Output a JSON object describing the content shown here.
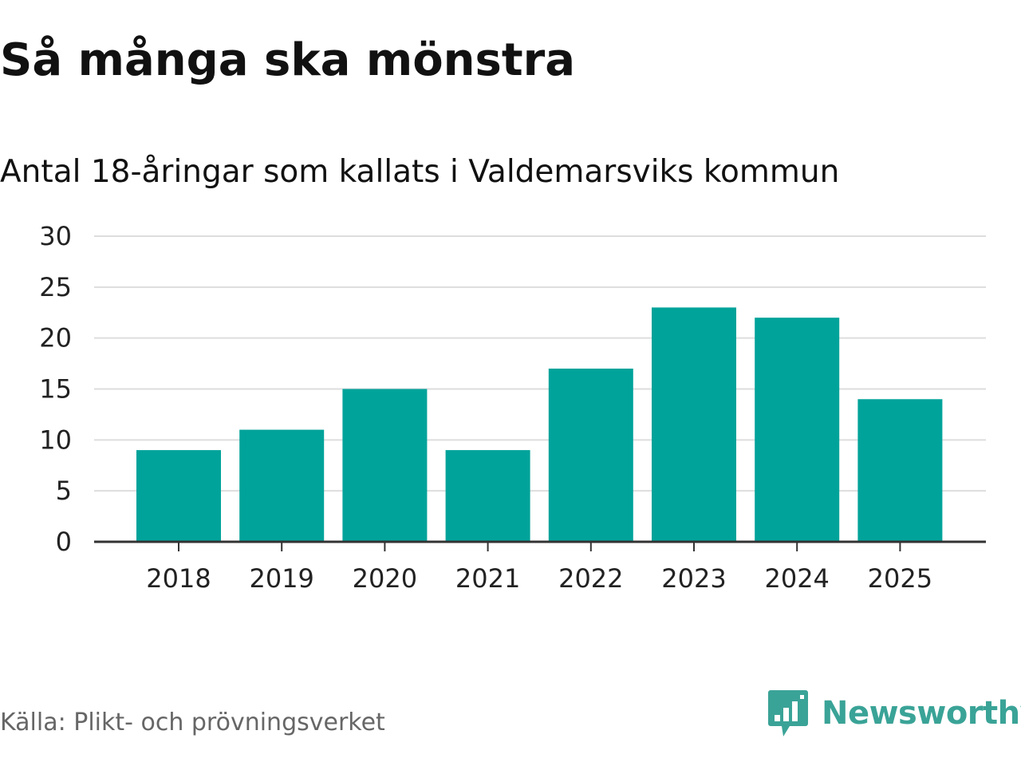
{
  "chart_data": {
    "type": "bar",
    "title": "Så många ska mönstra",
    "subtitle": "Antal 18-åringar som kallats i Valdemarsviks kommun",
    "categories": [
      "2018",
      "2019",
      "2020",
      "2021",
      "2022",
      "2023",
      "2024",
      "2025"
    ],
    "values": [
      9,
      11,
      15,
      9,
      17,
      23,
      22,
      14
    ],
    "xlabel": "",
    "ylabel": "",
    "ylim": [
      0,
      30
    ],
    "yticks": [
      0,
      5,
      10,
      15,
      20,
      25,
      30
    ],
    "grid": true,
    "bar_color": "#00a39a"
  },
  "source": "Källa: Plikt- och prövningsverket",
  "brand": {
    "name": "Newsworthy",
    "icon": "newsworthy-logo-icon",
    "color": "#3aa397"
  }
}
